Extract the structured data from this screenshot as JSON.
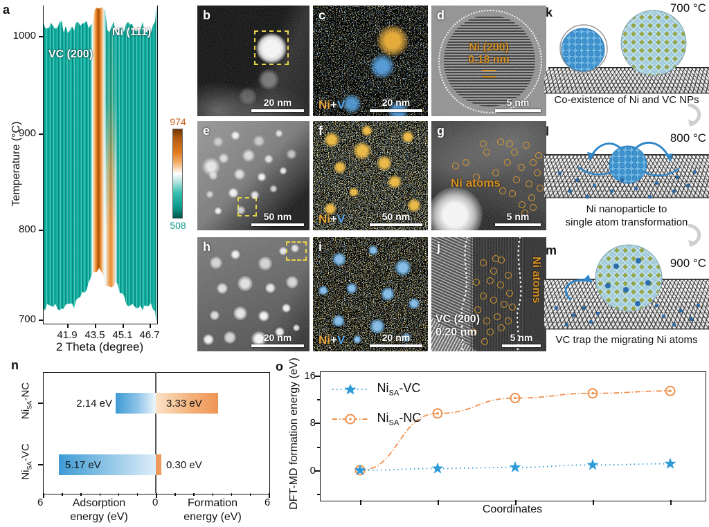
{
  "figure": {
    "panel_a": {
      "letter": "a",
      "ylabel": "Temperature (°C)",
      "xlabel": "2 Theta (degree)",
      "yticks": [
        "1000",
        "900",
        "800",
        "700"
      ],
      "xticks": [
        "41.9",
        "43.5",
        "45.1",
        "46.7"
      ],
      "label_vc": "VC (200)",
      "label_ni": "Ni (111)",
      "colorbar_max": "974",
      "colorbar_min": "508"
    },
    "panel_b": {
      "letter": "b",
      "scalebar": "20 nm"
    },
    "panel_c": {
      "letter": "c",
      "scalebar": "20 nm",
      "ni": "Ni",
      "plus": "+",
      "v": "V"
    },
    "panel_d": {
      "letter": "d",
      "scalebar": "5 nm",
      "ann1": "Ni (200)",
      "ann2": "0.18 nm"
    },
    "panel_e": {
      "letter": "e",
      "scalebar": "50 nm"
    },
    "panel_f": {
      "letter": "f",
      "scalebar": "50 nm",
      "ni": "Ni",
      "plus": "+",
      "v": "V"
    },
    "panel_g": {
      "letter": "g",
      "scalebar": "5 nm",
      "ann": "Ni atoms"
    },
    "panel_h": {
      "letter": "h",
      "scalebar": "20 nm"
    },
    "panel_i": {
      "letter": "i",
      "scalebar": "20 nm",
      "ni": "Ni",
      "plus": "+",
      "v": "V"
    },
    "panel_j": {
      "letter": "j",
      "scalebar": "5 nm",
      "ann_side": "Ni atoms",
      "ann1": "VC (200)",
      "ann2": "0.20 nm"
    },
    "panel_k": {
      "letter": "k",
      "temp": "700 °C",
      "caption": "Co-existence of Ni and VC NPs"
    },
    "panel_l": {
      "letter": "l",
      "temp": "800 °C",
      "caption1": "Ni nanoparticle to",
      "caption2": "single atom transformation"
    },
    "panel_m": {
      "letter": "m",
      "temp": "900 °C",
      "caption": "VC trap the migrating Ni atoms"
    },
    "panel_n": {
      "letter": "n",
      "cat_top": {
        "prefix": "Ni",
        "sub": "SA",
        "suffix": "-NC"
      },
      "cat_bottom": {
        "prefix": "Ni",
        "sub": "SA",
        "suffix": "-VC"
      },
      "values": {
        "nc_ads": "2.14 eV",
        "nc_form": "3.33 eV",
        "vc_ads": "5.17 eV",
        "vc_form": "0.30 eV"
      },
      "x_left": "6",
      "x_center": "0",
      "x_right": "6",
      "xlabel_left1": "Adsorption",
      "xlabel_left2": "energy (eV)",
      "xlabel_right1": "Formation",
      "xlabel_right2": "energy (eV)"
    },
    "panel_o": {
      "letter": "o",
      "ylabel": "DFT-MD formation energy (eV)",
      "yticks": [
        "16",
        "8",
        "0"
      ],
      "xlabel": "Coordinates",
      "legend_vc": {
        "prefix": "Ni",
        "sub": "SA",
        "suffix": "-VC"
      },
      "legend_nc": {
        "prefix": "Ni",
        "sub": "SA",
        "suffix": "-NC"
      }
    }
  },
  "colors": {
    "teal": "#0eb0a1",
    "orange_peak": "#e2791c",
    "chart_blue": "#2e9ad6",
    "chart_orange": "#f0904e",
    "bar_blue": "#3e9bd5",
    "bar_orange": "#ee9455",
    "eds_gold": "#e8a83c",
    "eds_blue": "#57a6e6",
    "dash_yellow": "#e8d44a"
  },
  "chart_data": [
    {
      "id": "a",
      "type": "heatmap",
      "xlabel": "2 Theta (degree)",
      "ylabel": "Temperature (°C)",
      "xticks": [
        41.9,
        43.5,
        45.1,
        46.7
      ],
      "yticks": [
        700,
        800,
        900,
        1000
      ],
      "colorbar_range": [
        508,
        974
      ],
      "peaks": [
        {
          "label": "VC (200)",
          "two_theta": 43.9,
          "extent": "persists 700–1030 °C"
        },
        {
          "label": "Ni (111)",
          "two_theta": 44.7,
          "extent": "strong 700–900 °C, fades above"
        }
      ],
      "background_intensity": 508,
      "max_intensity": 974
    },
    {
      "id": "n",
      "type": "bar",
      "orientation": "horizontal-diverging",
      "categories": [
        "NiSA-NC",
        "NiSA-VC"
      ],
      "series": [
        {
          "name": "Adsorption energy (eV)",
          "direction": "left",
          "values": [
            2.14,
            5.17
          ],
          "color": "#3e9bd5"
        },
        {
          "name": "Formation energy (eV)",
          "direction": "right",
          "values": [
            3.33,
            0.3
          ],
          "color": "#ee9455"
        }
      ],
      "axis_range_each_side": [
        0,
        6
      ]
    },
    {
      "id": "o",
      "type": "line",
      "xlabel": "Coordinates",
      "ylabel": "DFT-MD formation energy (eV)",
      "yticks": [
        0,
        8,
        16
      ],
      "ylim": [
        -4.5,
        17.5
      ],
      "x": [
        1,
        2,
        3,
        4,
        5
      ],
      "series": [
        {
          "name": "NiSA-NC",
          "marker": "open-circle",
          "line": "dash-dot",
          "color": "#f0904e",
          "values": [
            0,
            9.6,
            12.2,
            13.0,
            13.4
          ]
        },
        {
          "name": "NiSA-VC",
          "marker": "star",
          "line": "dotted",
          "color": "#2e9ad6",
          "values": [
            0,
            0.3,
            0.5,
            0.9,
            1.1
          ]
        }
      ],
      "legend_position": "top-left",
      "grid": false
    }
  ]
}
